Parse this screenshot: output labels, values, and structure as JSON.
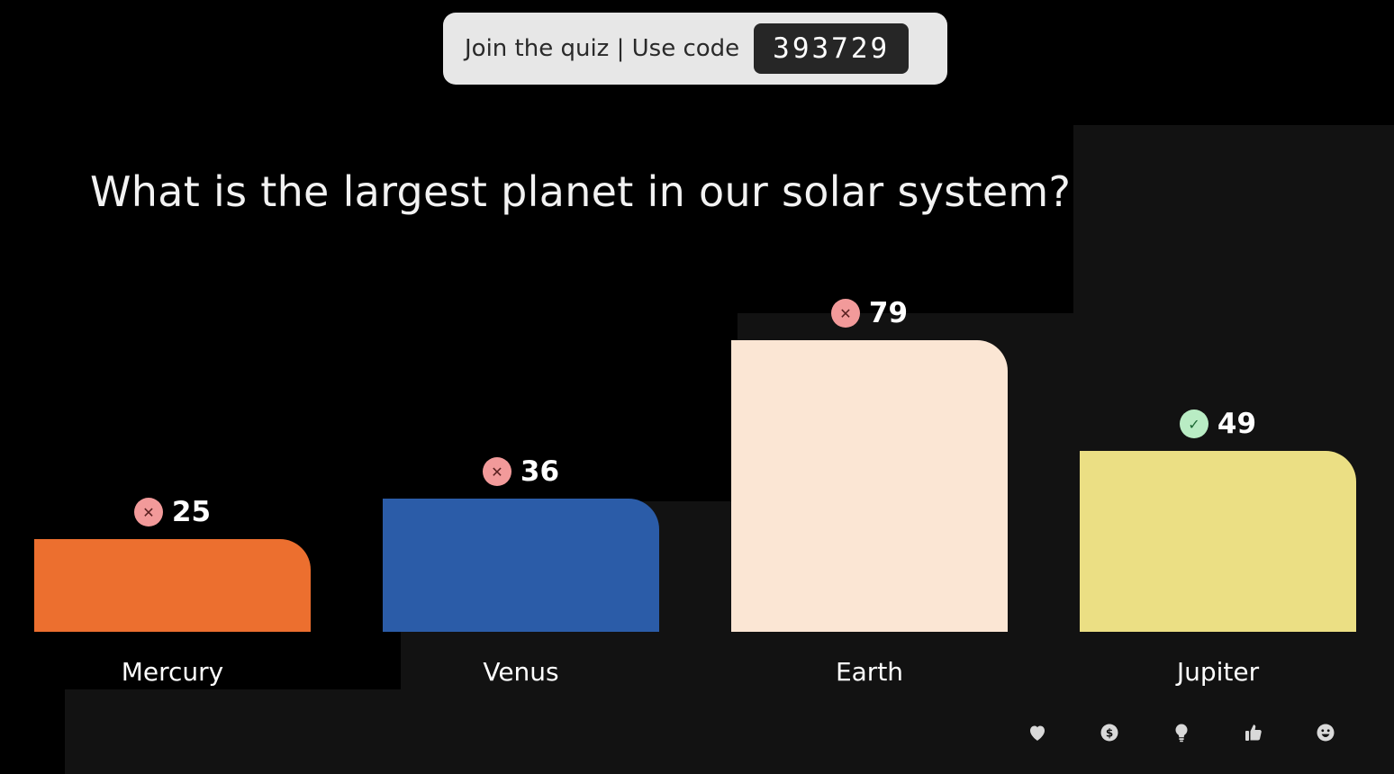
{
  "join": {
    "text": "Join the quiz | Use code",
    "code": "393729"
  },
  "question": "What is the largest planet in our solar system?",
  "chart_data": {
    "type": "bar",
    "categories": [
      "Mercury",
      "Venus",
      "Earth",
      "Jupiter"
    ],
    "values": [
      25,
      36,
      79,
      49
    ],
    "correct": [
      false,
      false,
      false,
      true
    ],
    "colors": [
      "#ec6f2f",
      "#2b5ca8",
      "#fbe6d4",
      "#ebdf84"
    ],
    "ylim": [
      0,
      79
    ]
  },
  "reactions": [
    {
      "name": "heart-icon"
    },
    {
      "name": "coin-icon"
    },
    {
      "name": "lightbulb-icon"
    },
    {
      "name": "thumbs-up-icon"
    },
    {
      "name": "smiley-icon"
    }
  ]
}
